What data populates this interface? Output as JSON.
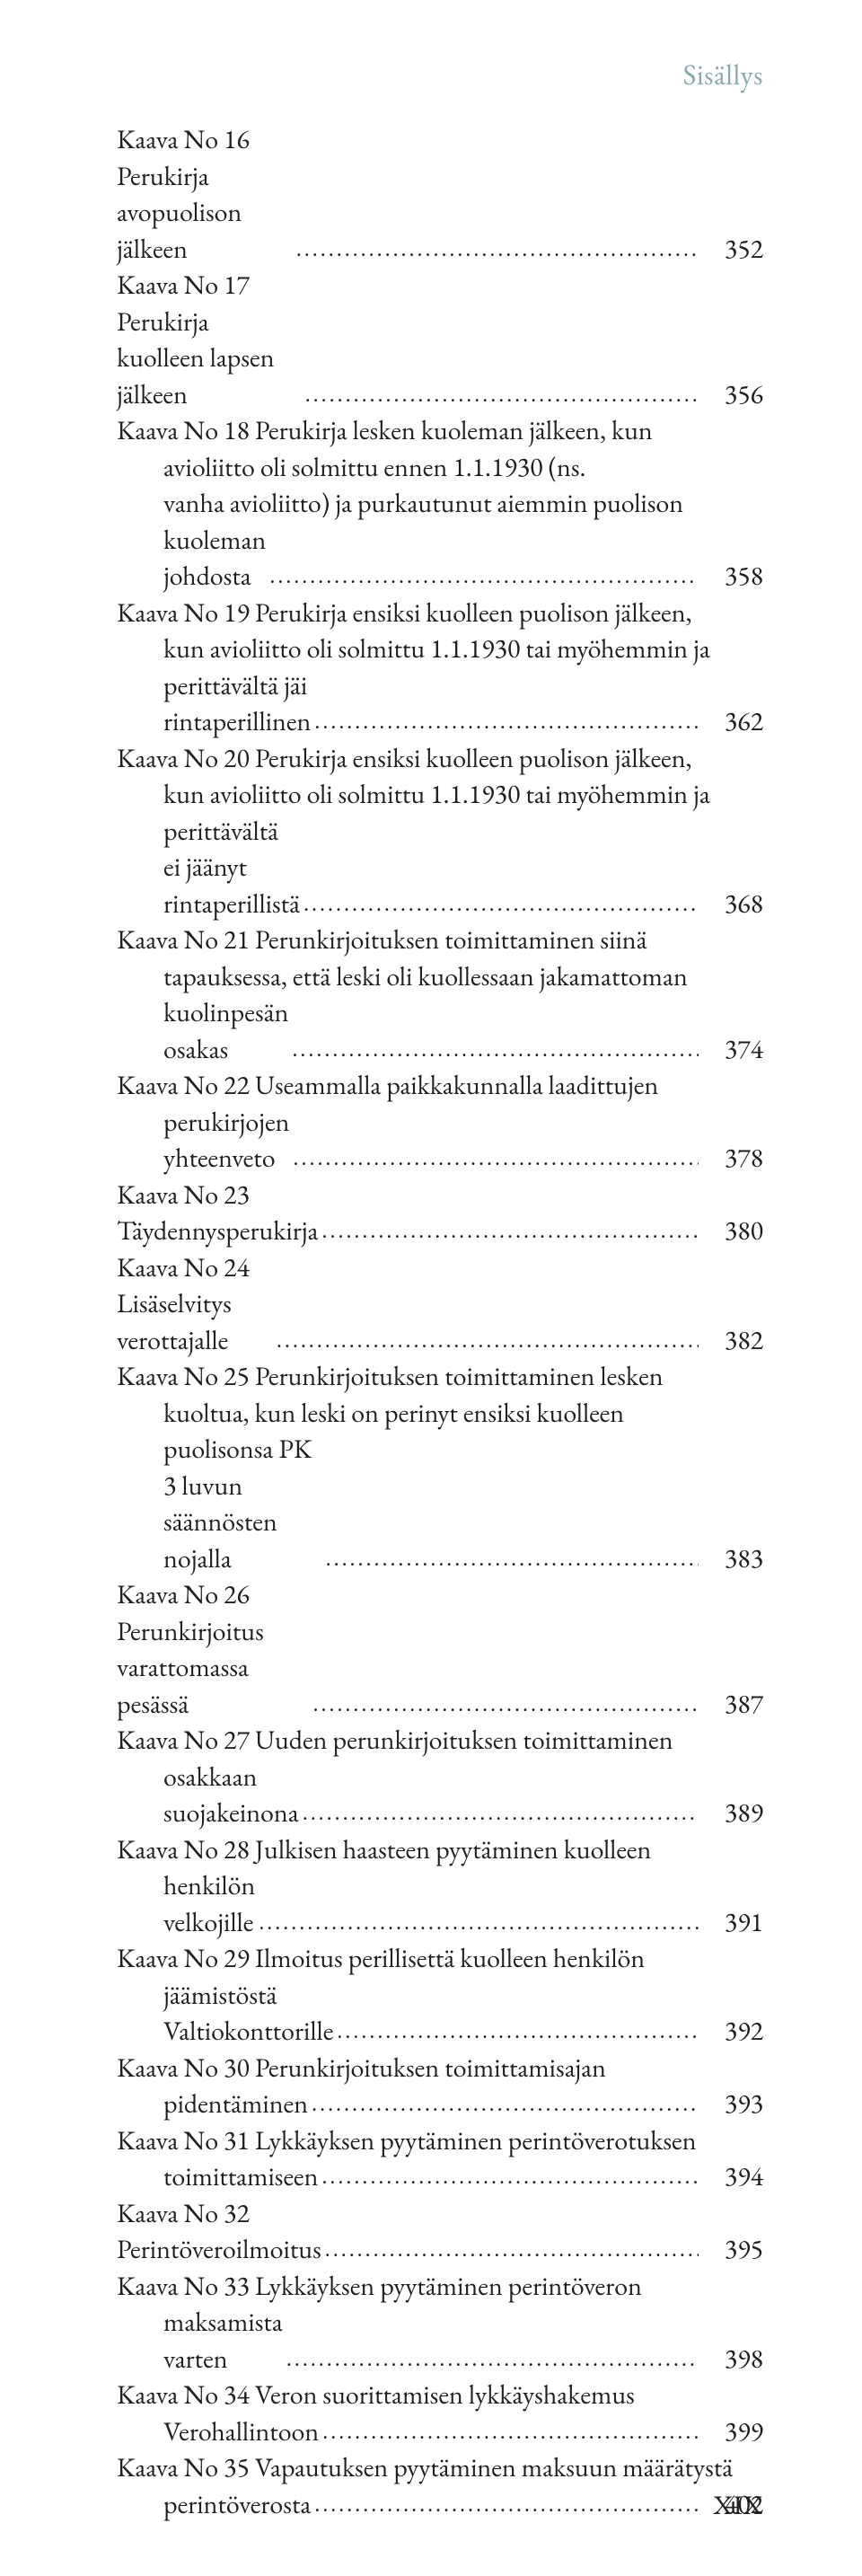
{
  "running_head": "Sisällys",
  "folio": "XIX",
  "leaders": "...........................................................................................................................",
  "entries": [
    {
      "lines": [
        "Kaava No 16 Perukirja avopuolison jälkeen"
      ],
      "page": "352"
    },
    {
      "lines": [
        "Kaava No 17 Perukirja kuolleen lapsen jälkeen"
      ],
      "page": "356"
    },
    {
      "lines": [
        "Kaava No 18 Perukirja lesken kuoleman jälkeen, kun",
        "avioliitto oli solmittu ennen 1.1.1930 (ns.",
        "vanha avioliitto) ja purkautunut aiemmin puolison",
        "kuoleman johdosta"
      ],
      "page": "358"
    },
    {
      "lines": [
        "Kaava No 19 Perukirja ensiksi kuolleen puolison jälkeen,",
        "kun avioliitto oli solmittu 1.1.1930 tai myöhemmin ja",
        "perittävältä jäi rintaperillinen"
      ],
      "page": "362"
    },
    {
      "lines": [
        "Kaava No 20 Perukirja ensiksi kuolleen puolison jälkeen,",
        "kun avioliitto oli solmittu 1.1.1930 tai myöhemmin ja",
        "perittävältä ei jäänyt rintaperillistä"
      ],
      "page": "368"
    },
    {
      "lines": [
        "Kaava No 21 Perunkirjoituksen toimittaminen siinä",
        "tapauksessa, että leski oli kuollessaan jakamattoman",
        "kuolinpesän osakas"
      ],
      "page": "374"
    },
    {
      "lines": [
        "Kaava No 22 Useammalla paikkakunnalla laadittujen",
        "perukirjojen yhteenveto"
      ],
      "page": "378"
    },
    {
      "lines": [
        "Kaava No 23 Täydennysperukirja"
      ],
      "page": "380"
    },
    {
      "lines": [
        "Kaava No 24 Lisäselvitys verottajalle"
      ],
      "page": "382"
    },
    {
      "lines": [
        "Kaava No 25 Perunkirjoituksen toimittaminen lesken",
        "kuoltua, kun leski on perinyt ensiksi kuolleen",
        "puolisonsa PK 3 luvun säännösten nojalla"
      ],
      "page": "383"
    },
    {
      "lines": [
        "Kaava No 26 Perunkirjoitus varattomassa pesässä"
      ],
      "page": "387"
    },
    {
      "lines": [
        "Kaava No 27 Uuden perunkirjoituksen toimittaminen",
        "osakkaan suojakeinona"
      ],
      "page": "389"
    },
    {
      "lines": [
        "Kaava No 28 Julkisen haasteen pyytäminen kuolleen",
        "henkilön velkojille"
      ],
      "page": "391"
    },
    {
      "lines": [
        "Kaava No 29 Ilmoitus perillisettä kuolleen henkilön",
        "jäämistöstä Valtiokonttorille"
      ],
      "page": "392"
    },
    {
      "lines": [
        "Kaava No 30 Perunkirjoituksen toimittamisajan",
        "pidentäminen"
      ],
      "page": "393"
    },
    {
      "lines": [
        "Kaava No 31 Lykkäyksen pyytäminen perintöverotuksen",
        "toimittamiseen"
      ],
      "page": "394"
    },
    {
      "lines": [
        "Kaava No 32 Perintöveroilmoitus"
      ],
      "page": "395"
    },
    {
      "lines": [
        "Kaava No 33 Lykkäyksen pyytäminen perintöveron",
        "maksamista varten"
      ],
      "page": "398"
    },
    {
      "lines": [
        "Kaava No 34 Veron suorittamisen lykkäyshakemus",
        "Verohallintoon"
      ],
      "page": "399"
    },
    {
      "lines": [
        "Kaava No 35 Vapautuksen pyytäminen maksuun määrätystä",
        "perintöverosta"
      ],
      "page": "402"
    }
  ]
}
